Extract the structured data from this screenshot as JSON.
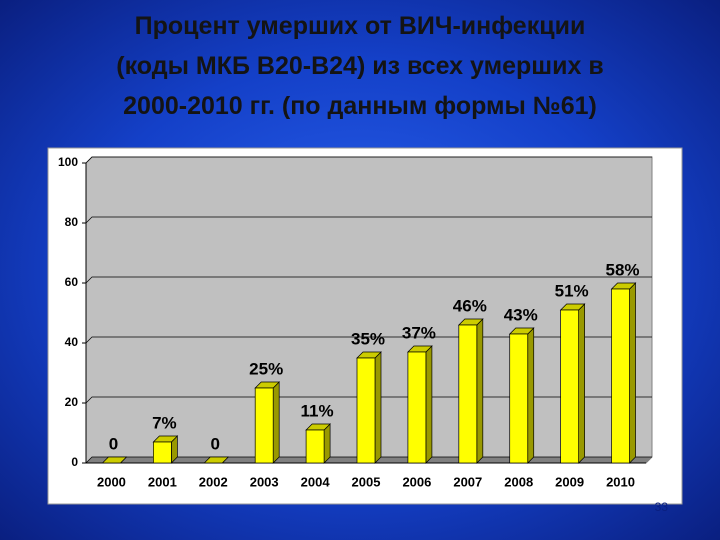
{
  "chart_data": {
    "type": "bar3d",
    "title": "Процент умерших от ВИЧ-инфекции\n(коды МКБ В20-В24) из всех умерших в\n2000-2010 гг. (по данным формы №61)",
    "categories": [
      "2000",
      "2001",
      "2002",
      "2003",
      "2004",
      "2005",
      "2006",
      "2007",
      "2008",
      "2009",
      "2010"
    ],
    "values": [
      0,
      7,
      0,
      25,
      11,
      35,
      37,
      46,
      43,
      51,
      58
    ],
    "value_labels": [
      "0",
      "7%",
      "0",
      "25%",
      "11%",
      "35%",
      "37%",
      "46%",
      "43%",
      "51%",
      "58%"
    ],
    "color": "#ffff00",
    "ylim": [
      0,
      100
    ],
    "yticks": [
      0,
      20,
      40,
      60,
      80,
      100
    ],
    "grid": true
  },
  "page_number": "33"
}
